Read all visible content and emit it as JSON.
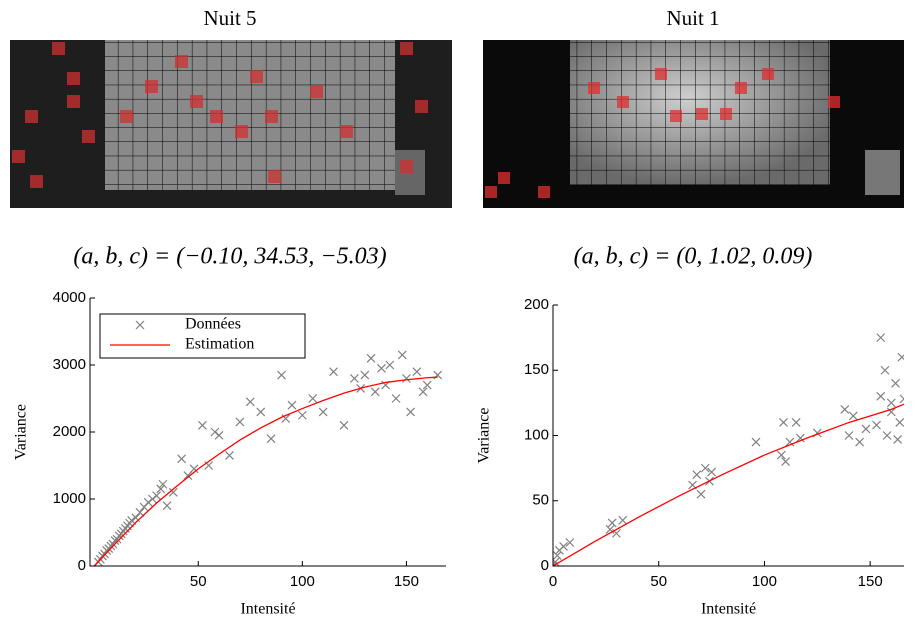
{
  "chart_data": [
    {
      "type": "scatter",
      "image_title": "Nuit 5",
      "title": "(a, b, c) = (−0.10, 34.53, −5.03)",
      "x_label": "Intensité",
      "y_label": "Variance",
      "legend": "upper left",
      "xlim": [
        -2,
        169
      ],
      "ylim": [
        0,
        4000
      ],
      "xticks": [
        50,
        100,
        150
      ],
      "yticks": [
        0,
        1000,
        2000,
        3000,
        4000
      ],
      "series": [
        {
          "name": "Données",
          "color": "#808080",
          "marker": "x",
          "x": [
            2,
            3,
            4,
            5,
            6,
            7,
            8,
            9,
            10,
            11,
            12,
            13,
            14,
            15,
            16,
            17,
            18,
            20,
            22,
            24,
            26,
            28,
            30,
            32,
            33,
            35,
            38,
            42,
            45,
            48,
            52,
            55,
            58,
            60,
            65,
            70,
            75,
            80,
            85,
            90,
            92,
            95,
            100,
            105,
            110,
            115,
            120,
            125,
            128,
            130,
            133,
            135,
            138,
            140,
            142,
            145,
            148,
            150,
            152,
            155,
            158,
            160,
            165
          ],
          "values": [
            60,
            100,
            150,
            180,
            230,
            260,
            300,
            330,
            380,
            400,
            450,
            480,
            520,
            560,
            600,
            640,
            680,
            720,
            800,
            880,
            950,
            1000,
            1050,
            1150,
            1220,
            900,
            1100,
            1600,
            1350,
            1450,
            2100,
            1500,
            2000,
            1950,
            1650,
            2150,
            2450,
            2300,
            1900,
            2850,
            2200,
            2400,
            2250,
            2500,
            2300,
            2900,
            2100,
            2800,
            2650,
            2850,
            3100,
            2600,
            2950,
            2700,
            3000,
            2500,
            3150,
            2800,
            2300,
            2900,
            2600,
            2700,
            2850
          ]
        },
        {
          "name": "Estimation",
          "color": "#ff0000",
          "marker": "line",
          "x": [
            0,
            10,
            20,
            30,
            40,
            50,
            60,
            70,
            80,
            90,
            100,
            110,
            120,
            130,
            140,
            150,
            160,
            165
          ],
          "values": [
            0,
            330,
            650,
            940,
            1200,
            1450,
            1670,
            1880,
            2060,
            2220,
            2350,
            2470,
            2580,
            2670,
            2740,
            2780,
            2810,
            2820
          ]
        }
      ]
    },
    {
      "type": "scatter",
      "image_title": "Nuit 1",
      "title": "(a, b, c) = (0, 1.02, 0.09)",
      "x_label": "Intensité",
      "y_label": "Variance",
      "xlim": [
        0,
        166
      ],
      "ylim": [
        0,
        200
      ],
      "xticks": [
        0,
        50,
        100,
        150
      ],
      "yticks": [
        0,
        50,
        100,
        150,
        200
      ],
      "series": [
        {
          "color": "#808080",
          "marker": "x",
          "x": [
            0,
            1,
            2,
            3,
            5,
            8,
            27,
            28,
            30,
            33,
            66,
            68,
            70,
            72,
            74,
            75,
            96,
            108,
            109,
            110,
            112,
            115,
            117,
            125,
            138,
            140,
            142,
            145,
            148,
            153,
            155,
            155,
            157,
            158,
            160,
            160,
            162,
            163,
            164,
            165,
            166
          ],
          "values": [
            0,
            3,
            8,
            12,
            15,
            18,
            28,
            33,
            25,
            35,
            62,
            70,
            55,
            75,
            65,
            72,
            95,
            85,
            110,
            80,
            95,
            110,
            98,
            102,
            120,
            100,
            115,
            95,
            105,
            108,
            130,
            175,
            150,
            100,
            118,
            125,
            140,
            97,
            110,
            160,
            128
          ]
        },
        {
          "color": "#ff0000",
          "marker": "line",
          "x": [
            0,
            20,
            40,
            60,
            80,
            100,
            120,
            140,
            160,
            166
          ],
          "values": [
            0,
            19,
            37,
            54,
            70,
            85,
            98,
            110,
            120,
            124
          ]
        }
      ]
    }
  ]
}
